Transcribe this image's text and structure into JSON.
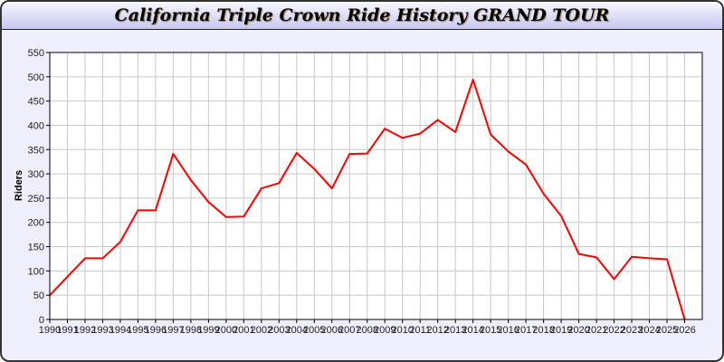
{
  "chart_data": {
    "type": "line",
    "title": "California Triple Crown Ride History GRAND TOUR",
    "xlabel": "",
    "ylabel": "Riders",
    "x": [
      1990,
      1991,
      1992,
      1993,
      1994,
      1995,
      1996,
      1997,
      1998,
      1999,
      2000,
      2001,
      2002,
      2003,
      2004,
      2005,
      2006,
      2007,
      2008,
      2009,
      2010,
      2011,
      2012,
      2013,
      2014,
      2015,
      2016,
      2017,
      2018,
      2019,
      2020,
      2021,
      2022,
      2023,
      2024,
      2025,
      2026
    ],
    "series": [
      {
        "values": [
          50,
          88,
          126,
          126,
          160,
          225,
          225,
          341,
          287,
          242,
          211,
          212,
          270,
          281,
          343,
          310,
          270,
          341,
          342,
          393,
          374,
          383,
          411,
          386,
          494,
          381,
          346,
          319,
          259,
          213,
          135,
          128,
          83,
          129,
          126,
          124,
          0
        ],
        "color": "#ff0000"
      }
    ],
    "ylim": [
      0,
      550
    ],
    "yticks": [
      0,
      50,
      100,
      150,
      200,
      250,
      300,
      350,
      400,
      450,
      500,
      550
    ],
    "xlim": [
      1990,
      2027
    ],
    "grid": true,
    "legend": "none"
  }
}
